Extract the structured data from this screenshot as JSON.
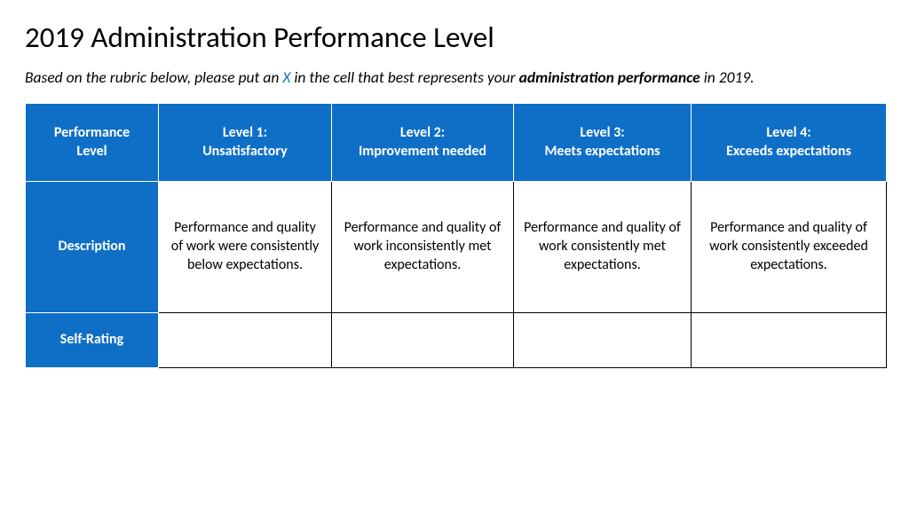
{
  "title": "2019 Administration Performance Level",
  "instruction": {
    "pre": "Based on the rubric below, please put an ",
    "x": "X",
    "mid": " in the cell that best represents your ",
    "bold": "administration performance",
    "post": " in 2019."
  },
  "table": {
    "columns": [
      {
        "line1": "Performance",
        "line2": "Level"
      },
      {
        "line1": "Level 1:",
        "line2": "Unsatisfactory"
      },
      {
        "line1": "Level 2:",
        "line2": "Improvement needed"
      },
      {
        "line1": "Level 3:",
        "line2": "Meets expectations"
      },
      {
        "line1": "Level 4:",
        "line2": "Exceeds expectations"
      }
    ],
    "rows": [
      {
        "label": "Description",
        "cells": [
          "Performance and quality of work were consistently below expectations.",
          "Performance and quality of work inconsistently met expectations.",
          "Performance and quality of work consistently met expectations.",
          "Performance and quality of work consistently exceeded expectations."
        ]
      },
      {
        "label": "Self-Rating",
        "cells": [
          "",
          "",
          "",
          ""
        ]
      }
    ],
    "header_bg": "#0f6fc6",
    "header_fg": "#ffffff",
    "body_bg": "#ffffff",
    "border_color_header": "#ffffff",
    "border_color_body": "#000000",
    "title_fontsize": 33,
    "instruction_fontsize": 17.5,
    "cell_fontsize": 16
  }
}
